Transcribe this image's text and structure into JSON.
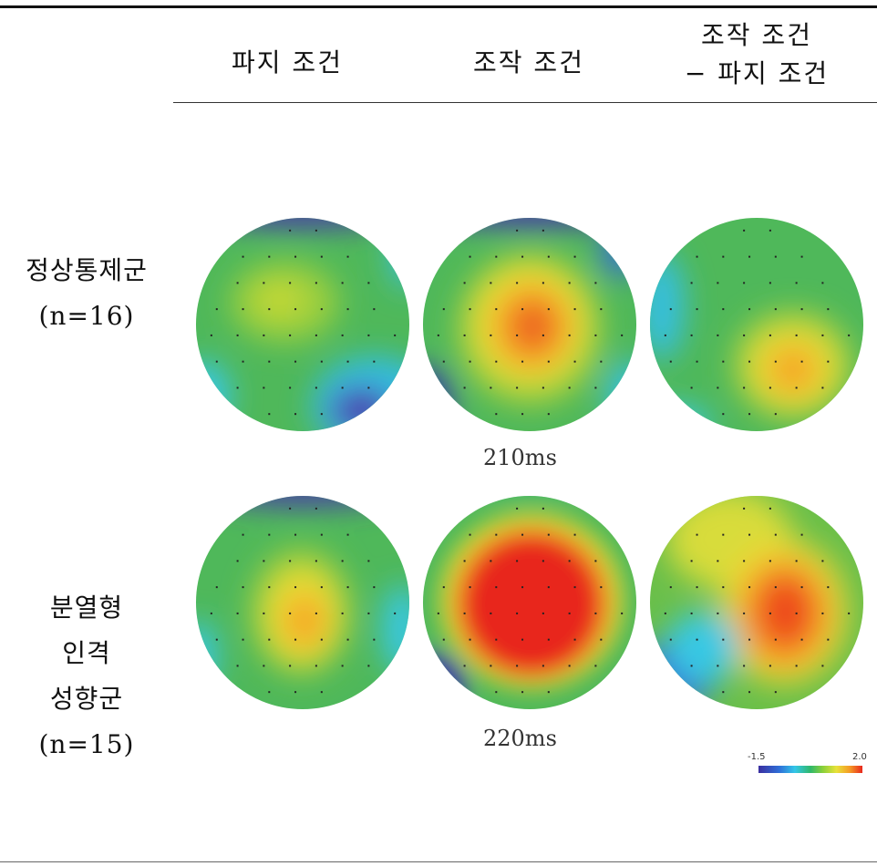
{
  "columns": [
    "파지 조건",
    "조작 조건",
    "조작 조건\n− 파지 조건"
  ],
  "rows": [
    {
      "label": "정상통제군\n(n=16)"
    },
    {
      "label": "분열형\n인격\n성향군\n(n=15)"
    }
  ],
  "times": [
    "210ms",
    "220ms"
  ],
  "colorbar": {
    "min": "-1.5",
    "max": "2.0",
    "colors": [
      "#3a2fa0",
      "#2f6fd8",
      "#33c6e8",
      "#30b86a",
      "#8bd03a",
      "#e8e23a",
      "#f59a25",
      "#e8281e"
    ]
  }
}
